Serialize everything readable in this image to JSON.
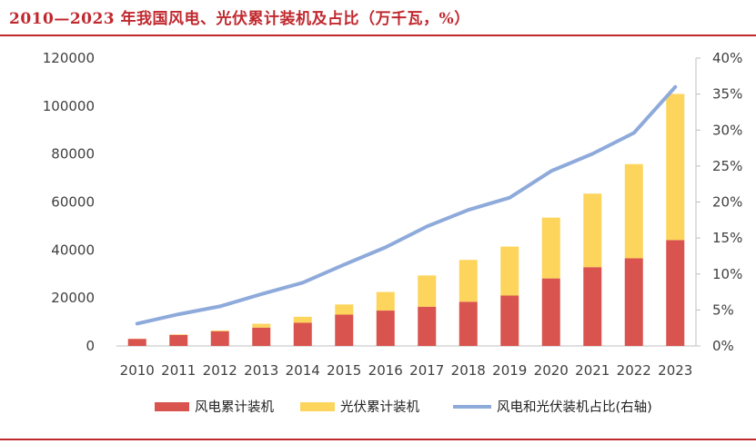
{
  "title": "2010—2023 年我国风电、光伏累计装机及占比（万千瓦，%）",
  "chart_data": {
    "type": "bar",
    "stacked": true,
    "categories": [
      "2010",
      "2011",
      "2012",
      "2013",
      "2014",
      "2015",
      "2016",
      "2017",
      "2018",
      "2019",
      "2020",
      "2021",
      "2022",
      "2023"
    ],
    "series": [
      {
        "name": "风电累计装机",
        "color": "#d9534f",
        "axis": "left",
        "values": [
          2958,
          4623,
          6142,
          7652,
          9657,
          13075,
          14747,
          16367,
          18426,
          21005,
          28153,
          32848,
          36544,
          44134
        ]
      },
      {
        "name": "光伏累计装机",
        "color": "#fdd55c",
        "axis": "left",
        "values": [
          86,
          212,
          341,
          1589,
          2486,
          4218,
          7742,
          13025,
          17446,
          20418,
          25343,
          30656,
          39261,
          60949
        ]
      }
    ],
    "line": {
      "name": "风电和光伏装机占比(右轴)",
      "color": "#8eaadb",
      "axis": "right",
      "values": [
        3.1,
        4.4,
        5.5,
        7.2,
        8.8,
        11.3,
        13.7,
        16.6,
        18.9,
        20.6,
        24.3,
        26.7,
        29.6,
        36.0
      ]
    },
    "y_left": {
      "min": 0,
      "max": 120000,
      "ticks": [
        "0",
        "20000",
        "40000",
        "60000",
        "80000",
        "100000",
        "120000"
      ]
    },
    "y_right": {
      "min": 0,
      "max": 40,
      "ticks": [
        "0%",
        "5%",
        "10%",
        "15%",
        "20%",
        "25%",
        "30%",
        "35%",
        "40%"
      ]
    },
    "legend_position": "bottom"
  }
}
